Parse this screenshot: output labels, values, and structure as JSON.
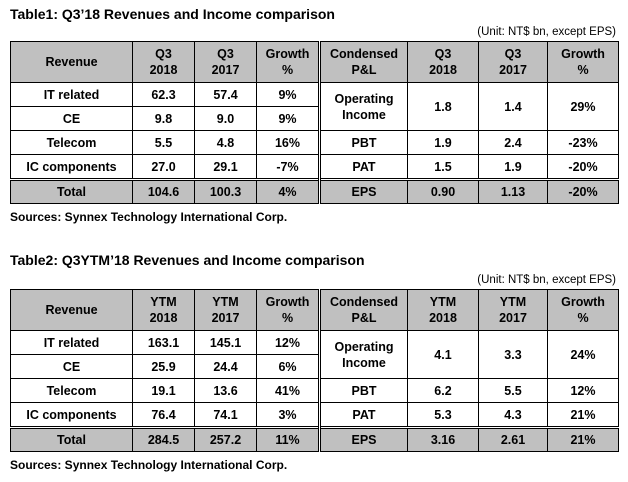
{
  "table1": {
    "title": "Table1: Q3’18 Revenues and Income comparison",
    "unit": "(Unit: NT$ bn, except EPS)",
    "header": {
      "rev_label": "Revenue",
      "c1": [
        "Q3",
        "2018"
      ],
      "c2": [
        "Q3",
        "2017"
      ],
      "c3": [
        "Growth",
        "%"
      ],
      "pl_label": [
        "Condensed",
        "P&L"
      ],
      "c4": [
        "Q3",
        "2018"
      ],
      "c5": [
        "Q3",
        "2017"
      ],
      "c6": [
        "Growth",
        "%"
      ]
    },
    "revenue_rows": [
      {
        "name": "IT related",
        "v2018": "62.3",
        "v2017": "57.4",
        "growth": "9%"
      },
      {
        "name": "CE",
        "v2018": "9.8",
        "v2017": "9.0",
        "growth": "9%"
      },
      {
        "name": "Telecom",
        "v2018": "5.5",
        "v2017": "4.8",
        "growth": "16%"
      },
      {
        "name": "IC components",
        "v2018": "27.0",
        "v2017": "29.1",
        "growth": "-7%"
      }
    ],
    "pl_rows": [
      {
        "name": [
          "Operating",
          "Income"
        ],
        "v2018": "1.8",
        "v2017": "1.4",
        "growth": "29%"
      },
      {
        "name": [
          "PBT"
        ],
        "v2018": "1.9",
        "v2017": "2.4",
        "growth": "-23%"
      },
      {
        "name": [
          "PAT"
        ],
        "v2018": "1.5",
        "v2017": "1.9",
        "growth": "-20%"
      }
    ],
    "total": {
      "name": "Total",
      "v2018": "104.6",
      "v2017": "100.3",
      "growth": "4%"
    },
    "eps": {
      "name": "EPS",
      "v2018": "0.90",
      "v2017": "1.13",
      "growth": "-20%"
    },
    "source": "Sources: Synnex Technology International Corp."
  },
  "table2": {
    "title": "Table2: Q3YTM’18 Revenues and Income comparison",
    "unit": "(Unit: NT$ bn, except EPS)",
    "header": {
      "rev_label": "Revenue",
      "c1": [
        "YTM",
        "2018"
      ],
      "c2": [
        "YTM",
        "2017"
      ],
      "c3": [
        "Growth",
        "%"
      ],
      "pl_label": [
        "Condensed",
        "P&L"
      ],
      "c4": [
        "YTM",
        "2018"
      ],
      "c5": [
        "YTM",
        "2017"
      ],
      "c6": [
        "Growth",
        "%"
      ]
    },
    "revenue_rows": [
      {
        "name": "IT related",
        "v2018": "163.1",
        "v2017": "145.1",
        "growth": "12%"
      },
      {
        "name": "CE",
        "v2018": "25.9",
        "v2017": "24.4",
        "growth": "6%"
      },
      {
        "name": "Telecom",
        "v2018": "19.1",
        "v2017": "13.6",
        "growth": "41%"
      },
      {
        "name": "IC components",
        "v2018": "76.4",
        "v2017": "74.1",
        "growth": "3%"
      }
    ],
    "pl_rows": [
      {
        "name": [
          "Operating",
          "Income"
        ],
        "v2018": "4.1",
        "v2017": "3.3",
        "growth": "24%"
      },
      {
        "name": [
          "PBT"
        ],
        "v2018": "6.2",
        "v2017": "5.5",
        "growth": "12%"
      },
      {
        "name": [
          "PAT"
        ],
        "v2018": "5.3",
        "v2017": "4.3",
        "growth": "21%"
      }
    ],
    "total": {
      "name": "Total",
      "v2018": "284.5",
      "v2017": "257.2",
      "growth": "11%"
    },
    "eps": {
      "name": "EPS",
      "v2018": "3.16",
      "v2017": "2.61",
      "growth": "21%"
    },
    "source": "Sources: Synnex Technology International Corp."
  }
}
